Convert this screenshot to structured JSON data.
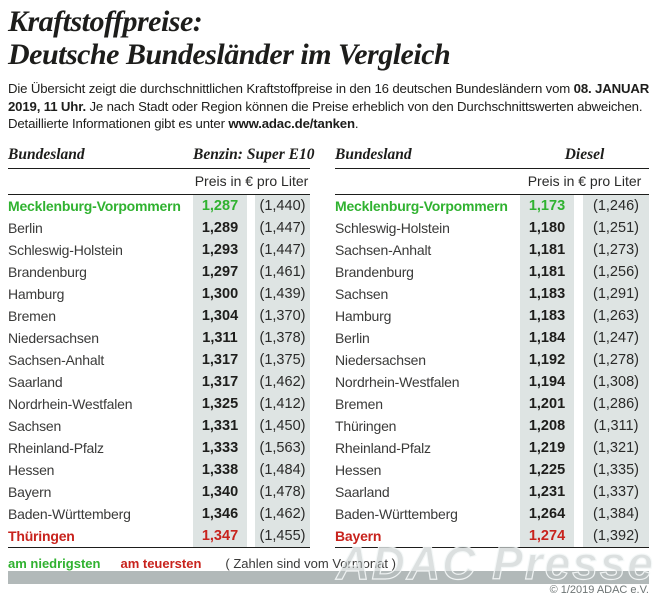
{
  "title": {
    "line1": "Kraftstoffpreise:",
    "line2": "Deutsche Bundesländer im Vergleich"
  },
  "intro": {
    "part1": "Die Übersicht zeigt die durchschnittlichen Kraftstoffpreise in den 16 deutschen Bundesländern vom ",
    "bold_date": "08. JANUAR 2019, 11 Uhr.",
    "part2": " Je nach Stadt oder Region können die Preise erheblich von den Durchschnittswerten abweichen. Detaillierte Informationen gibt es unter ",
    "bold_url": "www.adac.de/tanken",
    "part3": "."
  },
  "labels": {
    "bundesland": "Bundesland",
    "unit": "Preis in € pro Liter"
  },
  "legend": {
    "lowest_label": "am niedrigsten",
    "highest_label": "am teuersten",
    "note": "( Zahlen sind vom Vormonat )"
  },
  "watermark": {
    "text": "ADAC Presse",
    "copyright": "© 1/2019 ADAC e.V."
  },
  "colors": {
    "lowest_green": "#30b230",
    "highest_red": "#c8231d",
    "price_column_bg": "#dee4e3",
    "bottom_bar_gray": "#b2b9b9",
    "text": "#1d1d1b"
  },
  "chart_data": [
    {
      "type": "table",
      "title": "Benzin: Super E10",
      "columns": [
        "Bundesland",
        "Preis in € pro Liter",
        "Vormonat"
      ],
      "rows": [
        {
          "state": "Mecklenburg-Vorpommern",
          "price": "1,287",
          "prev": "(1,440)",
          "highlight": "lowest"
        },
        {
          "state": "Berlin",
          "price": "1,289",
          "prev": "(1,447)"
        },
        {
          "state": "Schleswig-Holstein",
          "price": "1,293",
          "prev": "(1,447)"
        },
        {
          "state": "Brandenburg",
          "price": "1,297",
          "prev": "(1,461)"
        },
        {
          "state": "Hamburg",
          "price": "1,300",
          "prev": "(1,439)"
        },
        {
          "state": "Bremen",
          "price": "1,304",
          "prev": "(1,370)"
        },
        {
          "state": "Niedersachsen",
          "price": "1,311",
          "prev": "(1,378)"
        },
        {
          "state": "Sachsen-Anhalt",
          "price": "1,317",
          "prev": "(1,375)"
        },
        {
          "state": "Saarland",
          "price": "1,317",
          "prev": "(1,462)"
        },
        {
          "state": "Nordrhein-Westfalen",
          "price": "1,325",
          "prev": "(1,412)"
        },
        {
          "state": "Sachsen",
          "price": "1,331",
          "prev": "(1,450)"
        },
        {
          "state": "Rheinland-Pfalz",
          "price": "1,333",
          "prev": "(1,563)"
        },
        {
          "state": "Hessen",
          "price": "1,338",
          "prev": "(1,484)"
        },
        {
          "state": "Bayern",
          "price": "1,340",
          "prev": "(1,478)"
        },
        {
          "state": "Baden-Württemberg",
          "price": "1,346",
          "prev": "(1,462)"
        },
        {
          "state": "Thüringen",
          "price": "1,347",
          "prev": "(1,455)",
          "highlight": "highest"
        }
      ]
    },
    {
      "type": "table",
      "title": "Diesel",
      "columns": [
        "Bundesland",
        "Preis in € pro Liter",
        "Vormonat"
      ],
      "rows": [
        {
          "state": "Mecklenburg-Vorpommern",
          "price": "1,173",
          "prev": "(1,246)",
          "highlight": "lowest"
        },
        {
          "state": "Schleswig-Holstein",
          "price": "1,180",
          "prev": "(1,251)"
        },
        {
          "state": "Sachsen-Anhalt",
          "price": "1,181",
          "prev": "(1,273)"
        },
        {
          "state": "Brandenburg",
          "price": "1,181",
          "prev": "(1,256)"
        },
        {
          "state": "Sachsen",
          "price": "1,183",
          "prev": "(1,291)"
        },
        {
          "state": "Hamburg",
          "price": "1,183",
          "prev": "(1,263)"
        },
        {
          "state": "Berlin",
          "price": "1,184",
          "prev": "(1,247)"
        },
        {
          "state": "Niedersachsen",
          "price": "1,192",
          "prev": "(1,278)"
        },
        {
          "state": "Nordrhein-Westfalen",
          "price": "1,194",
          "prev": "(1,308)"
        },
        {
          "state": "Bremen",
          "price": "1,201",
          "prev": "(1,286)"
        },
        {
          "state": "Thüringen",
          "price": "1,208",
          "prev": "(1,311)"
        },
        {
          "state": "Rheinland-Pfalz",
          "price": "1,219",
          "prev": "(1,321)"
        },
        {
          "state": "Hessen",
          "price": "1,225",
          "prev": "(1,335)"
        },
        {
          "state": "Saarland",
          "price": "1,231",
          "prev": "(1,337)"
        },
        {
          "state": "Baden-Württemberg",
          "price": "1,264",
          "prev": "(1,384)"
        },
        {
          "state": "Bayern",
          "price": "1,274",
          "prev": "(1,392)",
          "highlight": "highest"
        }
      ]
    }
  ]
}
